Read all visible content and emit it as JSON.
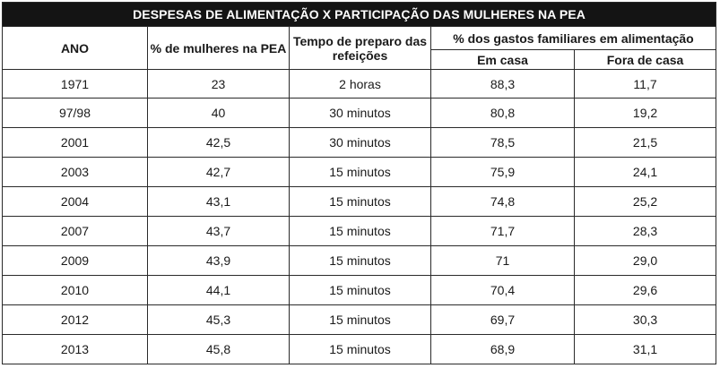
{
  "table": {
    "title": "DESPESAS DE ALIMENTAÇÃO X PARTICIPAÇÃO DAS MULHERES NA PEA",
    "headers": {
      "ano": "ANO",
      "pea": "% de mulheres na PEA",
      "tempo": "Tempo de preparo das refeições",
      "gastos": "% dos gastos familiares em alimentação",
      "em_casa": "Em casa",
      "fora_casa": "Fora de casa"
    },
    "rows": [
      {
        "ano": "1971",
        "pea": "23",
        "tempo": "2 horas",
        "em_casa": "88,3",
        "fora_casa": "11,7"
      },
      {
        "ano": "97/98",
        "pea": "40",
        "tempo": "30 minutos",
        "em_casa": "80,8",
        "fora_casa": "19,2"
      },
      {
        "ano": "2001",
        "pea": "42,5",
        "tempo": "30 minutos",
        "em_casa": "78,5",
        "fora_casa": "21,5"
      },
      {
        "ano": "2003",
        "pea": "42,7",
        "tempo": "15 minutos",
        "em_casa": "75,9",
        "fora_casa": "24,1"
      },
      {
        "ano": "2004",
        "pea": "43,1",
        "tempo": "15 minutos",
        "em_casa": "74,8",
        "fora_casa": "25,2"
      },
      {
        "ano": "2007",
        "pea": "43,7",
        "tempo": "15 minutos",
        "em_casa": "71,7",
        "fora_casa": "28,3"
      },
      {
        "ano": "2009",
        "pea": "43,9",
        "tempo": "15 minutos",
        "em_casa": "71",
        "fora_casa": "29,0"
      },
      {
        "ano": "2010",
        "pea": "44,1",
        "tempo": "15 minutos",
        "em_casa": "70,4",
        "fora_casa": "29,6"
      },
      {
        "ano": "2012",
        "pea": "45,3",
        "tempo": "15 minutos",
        "em_casa": "69,7",
        "fora_casa": "30,3"
      },
      {
        "ano": "2013",
        "pea": "45,8",
        "tempo": "15 minutos",
        "em_casa": "68,9",
        "fora_casa": "31,1"
      }
    ]
  },
  "colors": {
    "title_bg": "#141414",
    "title_text": "#ffffff",
    "border": "#2a2a2a"
  }
}
